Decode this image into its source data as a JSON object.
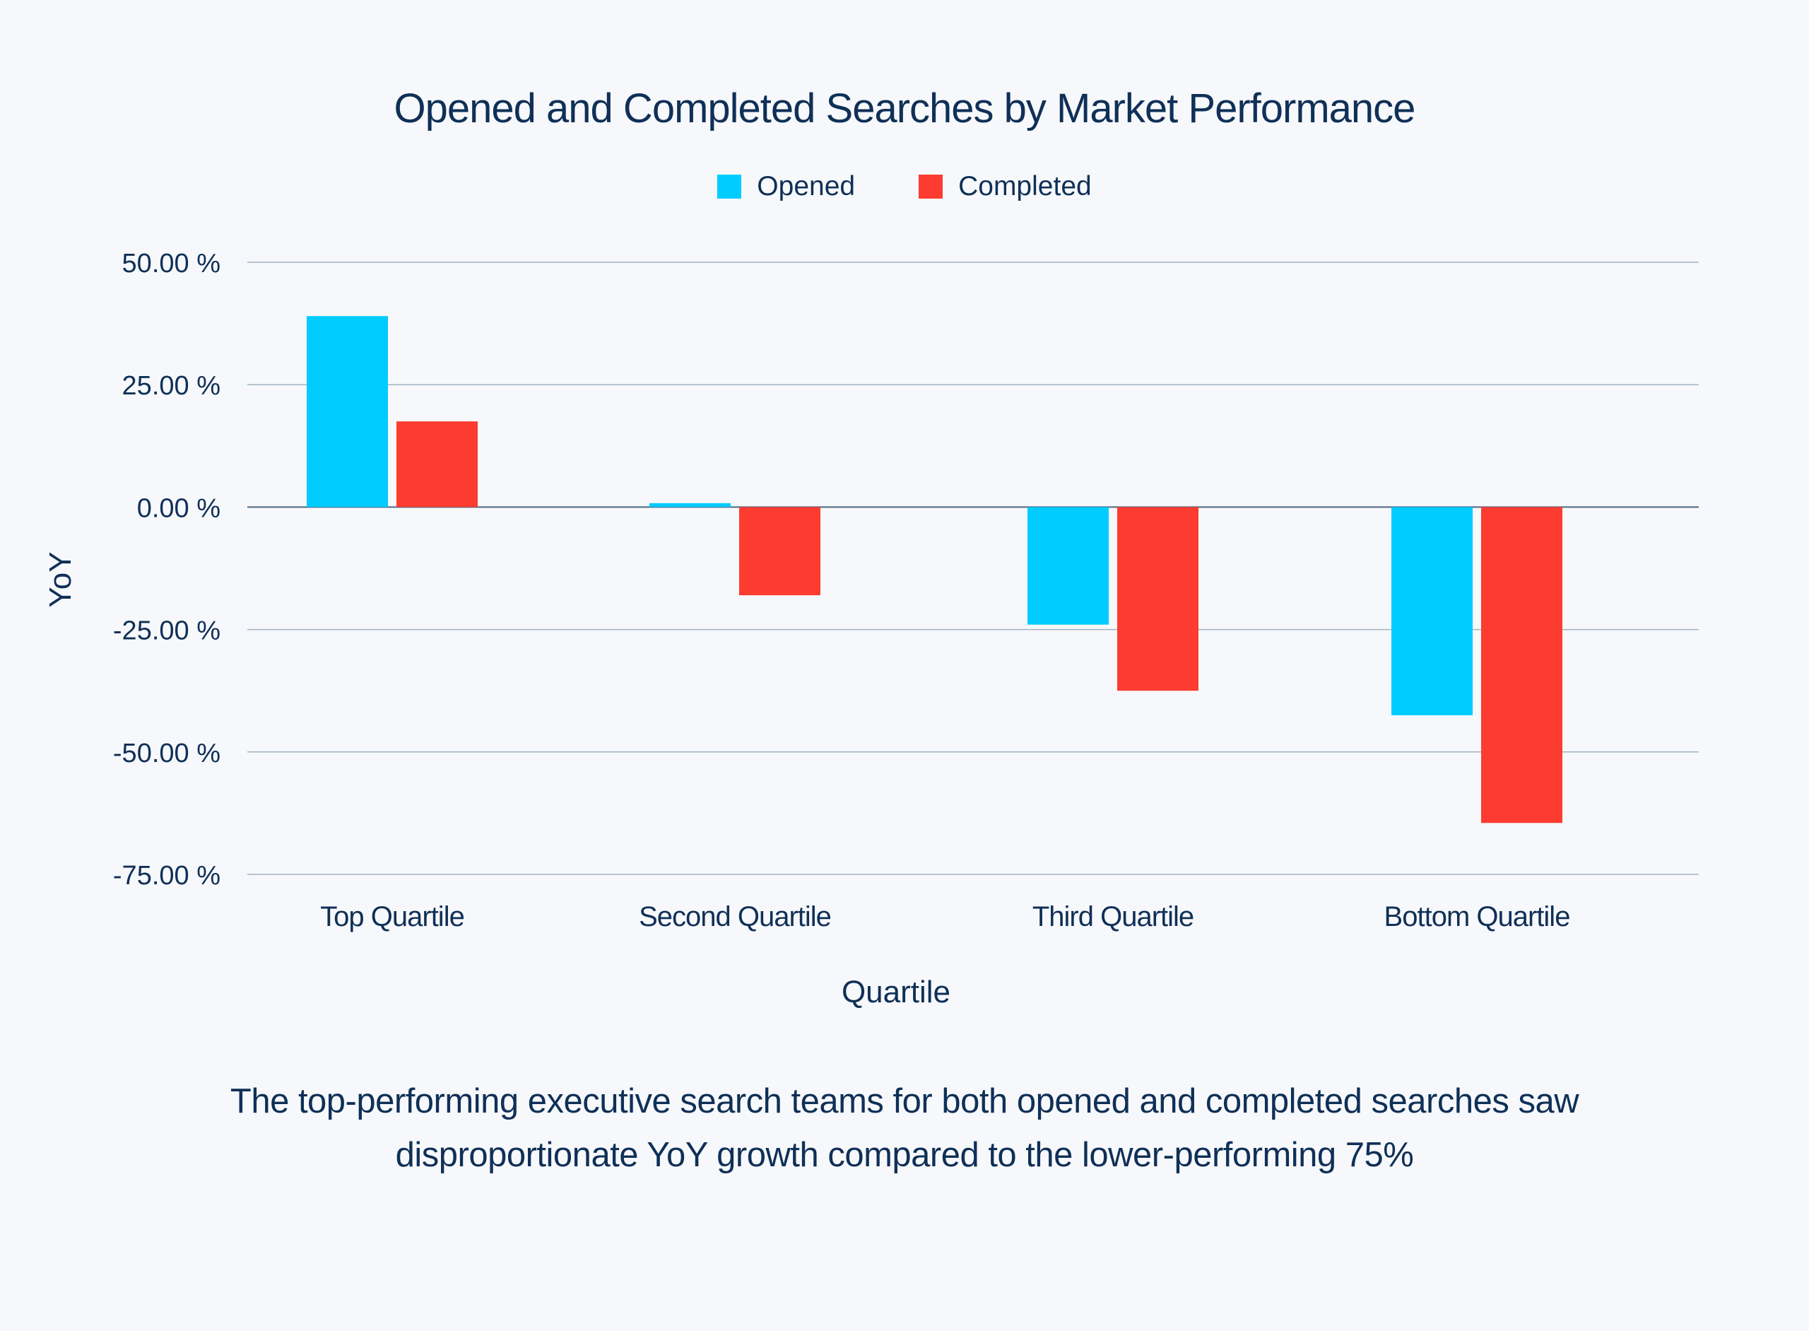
{
  "chart_data": {
    "type": "bar",
    "title": "Opened and Completed Searches by Market Performance",
    "xlabel": "Quartile",
    "ylabel": "YoY",
    "categories": [
      "Top Quartile",
      "Second Quartile",
      "Third Quartile",
      "Bottom Quartile"
    ],
    "series": [
      {
        "name": "Opened",
        "color": "#00ccff",
        "values": [
          39.0,
          0.8,
          -24.0,
          -42.5
        ]
      },
      {
        "name": "Completed",
        "color": "#fc3c30",
        "values": [
          17.5,
          -18.0,
          -37.5,
          -64.5
        ]
      }
    ],
    "ylim": [
      -75,
      50
    ],
    "yticks": [
      50,
      25,
      0,
      -25,
      -50,
      -75
    ],
    "ytick_labels": [
      "50.00 %",
      "25.00 %",
      "0.00 %",
      "-25.00 %",
      "-50.00 %",
      "-75.00 %"
    ],
    "grid": true,
    "legend_position": "top-center"
  },
  "caption": {
    "line1": "The top-performing executive search teams for both opened and completed searches saw",
    "line2": "disproportionate YoY growth compared to the  lower-performing 75%"
  }
}
